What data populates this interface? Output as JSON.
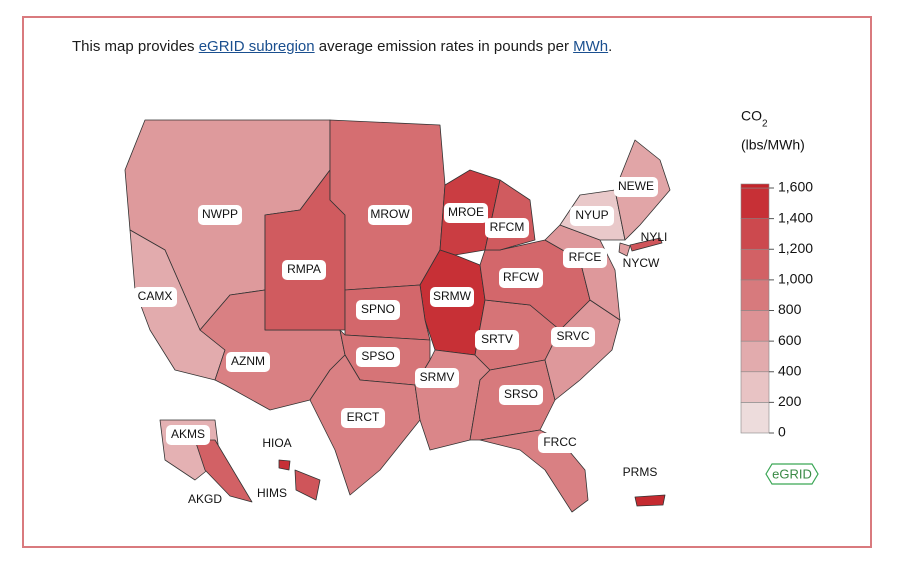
{
  "intro": {
    "parts": [
      "This map provides ",
      "eGRID subregion",
      " average emission rates in pounds per ",
      "MWh",
      "."
    ]
  },
  "legend": {
    "title": "CO",
    "subscript": "2",
    "unit": "(lbs/MWh)",
    "range": [
      0,
      1600
    ],
    "ticks": [
      0,
      200,
      400,
      600,
      800,
      {
        "value": 1000,
        "label": "1,000"
      },
      {
        "value": 1200,
        "label": "1,200"
      },
      {
        "value": 1400,
        "label": "1,400"
      },
      {
        "value": 1600,
        "label": "1,600"
      }
    ]
  },
  "regions": [
    {
      "name": "NWPP",
      "value": 640
    },
    {
      "name": "CAMX",
      "value": 500
    },
    {
      "name": "AZNM",
      "value": 850
    },
    {
      "name": "RMPA",
      "value": 1150
    },
    {
      "name": "MROW",
      "value": 1000
    },
    {
      "name": "MROE",
      "value": 1400
    },
    {
      "name": "SRMW",
      "value": 1500
    },
    {
      "name": "SPNO",
      "value": 1050
    },
    {
      "name": "SPSO",
      "value": 950
    },
    {
      "name": "ERCT",
      "value": 850
    },
    {
      "name": "SRMV",
      "value": 800
    },
    {
      "name": "SRTV",
      "value": 950
    },
    {
      "name": "SRSO",
      "value": 900
    },
    {
      "name": "FRCC",
      "value": 850
    },
    {
      "name": "SRVC",
      "value": 650
    },
    {
      "name": "RFCW",
      "value": 1050
    },
    {
      "name": "RFCM",
      "value": 1150
    },
    {
      "name": "RFCE",
      "value": 650
    },
    {
      "name": "NYUP",
      "value": 250
    },
    {
      "name": "NEWE",
      "value": 550
    },
    {
      "name": "NYLI",
      "value": 1200
    },
    {
      "name": "NYCW",
      "value": 600
    },
    {
      "name": "AKMS",
      "value": 450
    },
    {
      "name": "AKGD",
      "value": 1100
    },
    {
      "name": "HIOA",
      "value": 1500
    },
    {
      "name": "HIMS",
      "value": 1200
    },
    {
      "name": "PRMS",
      "value": 1550
    }
  ],
  "logo": "eGRID"
}
